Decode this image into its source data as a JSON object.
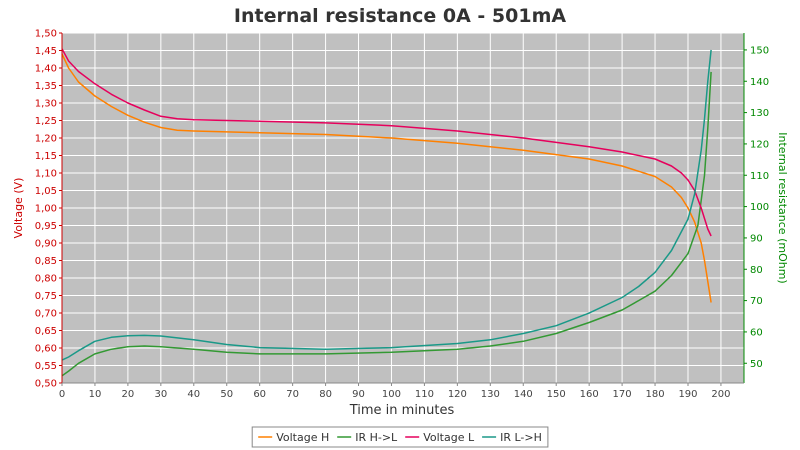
{
  "chart_data": {
    "type": "line",
    "title": "Internal resistance  0A - 501mA",
    "xlabel": "Time in minutes",
    "ylabel": "Voltage (V)",
    "y2label": "Internal resistance (mOhm)",
    "xlim": [
      0,
      207
    ],
    "ylim": [
      0.5,
      1.5
    ],
    "y2lim": [
      43.7,
      155.4
    ],
    "xticks": [
      "0",
      "10",
      "20",
      "30",
      "40",
      "50",
      "60",
      "70",
      "80",
      "90",
      "100",
      "110",
      "120",
      "130",
      "140",
      "150",
      "160",
      "170",
      "180",
      "190",
      "200"
    ],
    "yticks": [
      "0,50",
      "0,55",
      "0,60",
      "0,65",
      "0,70",
      "0,75",
      "0,80",
      "0,85",
      "0,90",
      "0,95",
      "1,00",
      "1,05",
      "1,10",
      "1,15",
      "1,20",
      "1,25",
      "1,30",
      "1,35",
      "1,40",
      "1,45",
      "1,50"
    ],
    "y2ticks": [
      "50",
      "60",
      "70",
      "80",
      "90",
      "100",
      "110",
      "120",
      "130",
      "140",
      "150"
    ],
    "grid": true,
    "legend_position": "bottom",
    "colors": {
      "voltage_axis": "#cc0000",
      "ir_axis": "#008800",
      "plot_bg": "#c0c0c0",
      "grid": "#ffffff"
    },
    "series": [
      {
        "name": "Voltage H",
        "axis": "left",
        "color": "#ff8000",
        "x": [
          0,
          2,
          5,
          10,
          15,
          20,
          25,
          30,
          35,
          40,
          60,
          80,
          100,
          120,
          140,
          160,
          170,
          180,
          185,
          188,
          190,
          192,
          194,
          195,
          196,
          197
        ],
        "y": [
          1.44,
          1.4,
          1.36,
          1.32,
          1.29,
          1.265,
          1.245,
          1.23,
          1.222,
          1.22,
          1.215,
          1.21,
          1.2,
          1.185,
          1.165,
          1.14,
          1.12,
          1.09,
          1.06,
          1.03,
          1.0,
          0.96,
          0.9,
          0.85,
          0.79,
          0.73
        ]
      },
      {
        "name": "IR H->L",
        "axis": "right",
        "color": "#339933",
        "x": [
          0,
          2,
          5,
          10,
          15,
          20,
          25,
          30,
          40,
          50,
          60,
          80,
          100,
          120,
          130,
          140,
          150,
          160,
          170,
          175,
          180,
          185,
          190,
          193,
          195,
          196,
          197
        ],
        "y": [
          46,
          47.5,
          50,
          53,
          54.5,
          55.3,
          55.5,
          55.3,
          54.5,
          53.5,
          53,
          53,
          53.5,
          54.5,
          55.5,
          57,
          59.5,
          63,
          67,
          70,
          73,
          78,
          85,
          94,
          110,
          125,
          143
        ]
      },
      {
        "name": "Voltage L",
        "axis": "left",
        "color": "#e6005c",
        "x": [
          0,
          2,
          5,
          10,
          15,
          20,
          25,
          30,
          35,
          40,
          60,
          80,
          100,
          120,
          140,
          160,
          170,
          180,
          185,
          188,
          190,
          192,
          194,
          195,
          196,
          197
        ],
        "y": [
          1.455,
          1.42,
          1.39,
          1.355,
          1.325,
          1.3,
          1.28,
          1.262,
          1.255,
          1.252,
          1.248,
          1.243,
          1.235,
          1.22,
          1.2,
          1.175,
          1.16,
          1.14,
          1.12,
          1.1,
          1.08,
          1.05,
          1.0,
          0.97,
          0.94,
          0.92
        ]
      },
      {
        "name": "IR L->H",
        "axis": "right",
        "color": "#1a9988",
        "x": [
          0,
          2,
          5,
          10,
          15,
          20,
          25,
          30,
          40,
          50,
          60,
          80,
          100,
          120,
          130,
          140,
          150,
          160,
          170,
          175,
          180,
          185,
          190,
          192,
          194,
          195,
          196,
          197
        ],
        "y": [
          51,
          52,
          54,
          57,
          58.3,
          58.8,
          58.9,
          58.7,
          57.5,
          56,
          55,
          54.5,
          55,
          56.3,
          57.5,
          59.5,
          62,
          66,
          71,
          74.5,
          79,
          86,
          96,
          104,
          118,
          128,
          140,
          150
        ]
      }
    ]
  }
}
